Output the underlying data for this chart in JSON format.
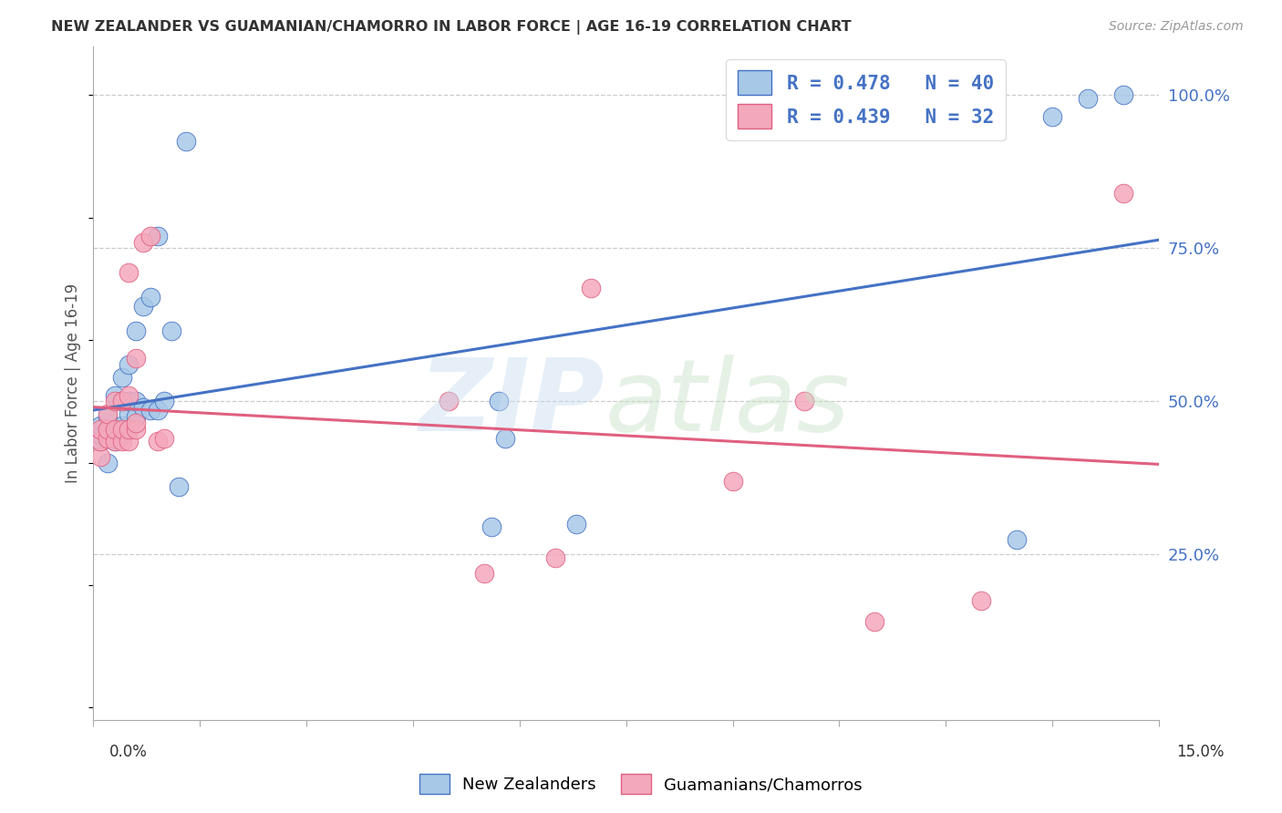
{
  "title": "NEW ZEALANDER VS GUAMANIAN/CHAMORRO IN LABOR FORCE | AGE 16-19 CORRELATION CHART",
  "source": "Source: ZipAtlas.com",
  "legend_label1": "New Zealanders",
  "legend_label2": "Guamanians/Chamorros",
  "R1": 0.478,
  "N1": 40,
  "R2": 0.439,
  "N2": 32,
  "color1": "#A8C8E8",
  "color2": "#F4A8BC",
  "line_color1": "#4472C4",
  "line_color2": "#E06080",
  "text_color_blue": "#4472C4",
  "xmin": 0.0,
  "xmax": 0.15,
  "ymin": -0.02,
  "ymax": 1.08,
  "nz_x": [
    0.001,
    0.001,
    0.001,
    0.002,
    0.002,
    0.002,
    0.002,
    0.003,
    0.003,
    0.003,
    0.003,
    0.004,
    0.004,
    0.004,
    0.004,
    0.005,
    0.005,
    0.005,
    0.005,
    0.006,
    0.006,
    0.006,
    0.007,
    0.007,
    0.008,
    0.008,
    0.009,
    0.009,
    0.01,
    0.011,
    0.012,
    0.013,
    0.056,
    0.057,
    0.058,
    0.068,
    0.13,
    0.135,
    0.14,
    0.145
  ],
  "nz_y": [
    0.435,
    0.445,
    0.46,
    0.4,
    0.44,
    0.455,
    0.475,
    0.435,
    0.44,
    0.455,
    0.51,
    0.445,
    0.46,
    0.5,
    0.54,
    0.455,
    0.48,
    0.5,
    0.56,
    0.475,
    0.5,
    0.615,
    0.49,
    0.655,
    0.485,
    0.67,
    0.485,
    0.77,
    0.5,
    0.615,
    0.36,
    0.925,
    0.295,
    0.5,
    0.44,
    0.3,
    0.275,
    0.965,
    0.995,
    1.0
  ],
  "gu_x": [
    0.001,
    0.001,
    0.001,
    0.002,
    0.002,
    0.002,
    0.003,
    0.003,
    0.003,
    0.004,
    0.004,
    0.004,
    0.005,
    0.005,
    0.005,
    0.005,
    0.006,
    0.006,
    0.006,
    0.007,
    0.008,
    0.009,
    0.01,
    0.05,
    0.055,
    0.065,
    0.07,
    0.09,
    0.1,
    0.11,
    0.125,
    0.145
  ],
  "gu_y": [
    0.41,
    0.435,
    0.455,
    0.44,
    0.455,
    0.48,
    0.435,
    0.455,
    0.5,
    0.435,
    0.455,
    0.5,
    0.435,
    0.455,
    0.51,
    0.71,
    0.455,
    0.465,
    0.57,
    0.76,
    0.77,
    0.435,
    0.44,
    0.5,
    0.22,
    0.245,
    0.685,
    0.37,
    0.5,
    0.14,
    0.175,
    0.84
  ]
}
